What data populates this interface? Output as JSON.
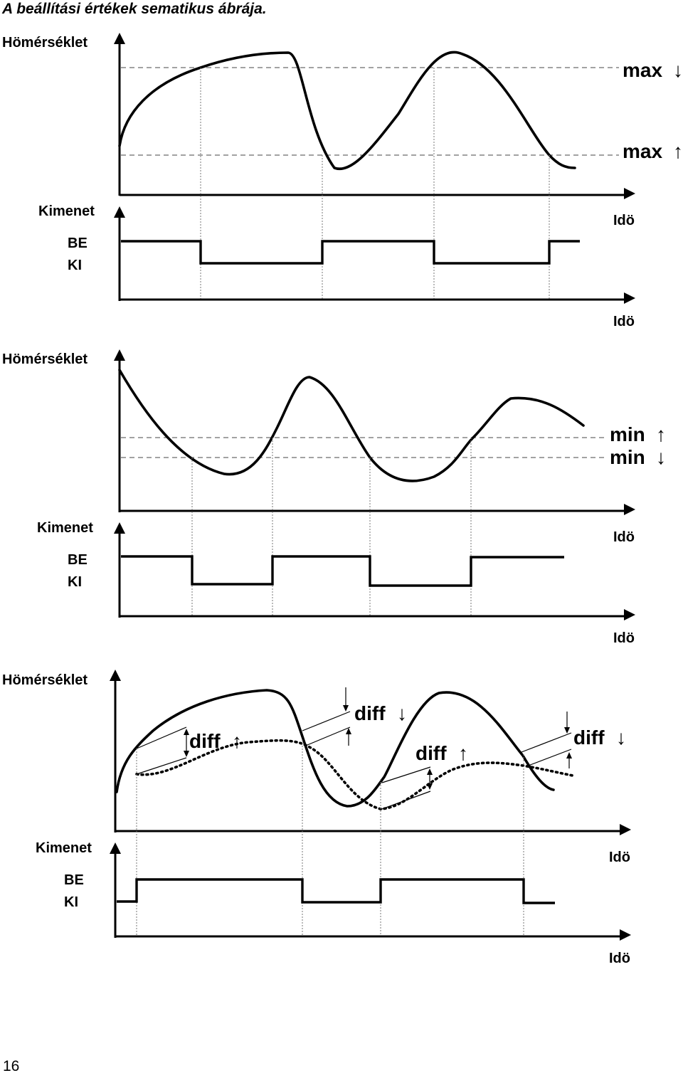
{
  "page_title": "A beállítási értékek sematikus ábrája.",
  "page_number": "16",
  "panels": [
    {
      "temperature_label": "Hömérséklet",
      "time_label": "Idö",
      "output_label": "Kimenet",
      "on_label": "BE",
      "off_label": "KI",
      "output_time_label": "Idö",
      "threshold_upper_label": "max",
      "threshold_upper_symbol": "↓",
      "threshold_lower_label": "max",
      "threshold_lower_symbol": "↑"
    },
    {
      "temperature_label": "Hömérséklet",
      "time_label": "Idö",
      "output_label": "Kimenet",
      "on_label": "BE",
      "off_label": "KI",
      "output_time_label": "Idö",
      "threshold_upper_label": "min",
      "threshold_upper_symbol": "↑",
      "threshold_lower_label": "min",
      "threshold_lower_symbol": "↓"
    },
    {
      "temperature_label": "Hömérséklet",
      "time_label": "Idö",
      "output_label": "Kimenet",
      "on_label": "BE",
      "off_label": "KI",
      "output_time_label": "Idö",
      "diff_labels": [
        "diff",
        "diff",
        "diff",
        "diff"
      ],
      "diff_symbols": [
        "↑",
        "↓",
        "↑",
        "↓"
      ]
    }
  ]
}
